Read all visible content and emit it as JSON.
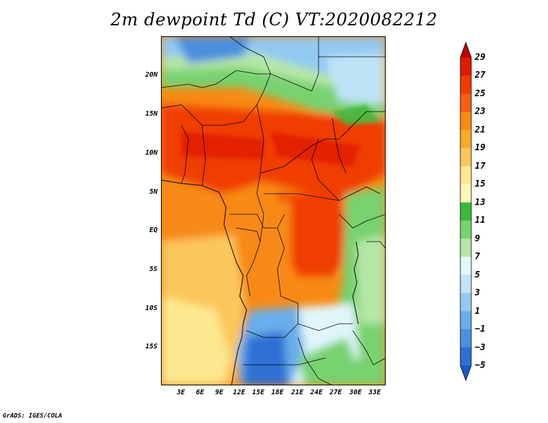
{
  "title": "2m dewpoint Td (C) VT:2020082212",
  "credit": "GrADS: IGES/COLA",
  "map": {
    "lat_labels": [
      "20N",
      "15N",
      "10N",
      "5N",
      "EQ",
      "5S",
      "10S",
      "15S"
    ],
    "lon_labels": [
      "3E",
      "6E",
      "9E",
      "12E",
      "15E",
      "18E",
      "21E",
      "24E",
      "27E",
      "30E",
      "33E"
    ]
  },
  "colorbar": {
    "levels": [
      "29",
      "27",
      "25",
      "23",
      "21",
      "19",
      "17",
      "15",
      "13",
      "11",
      "9",
      "7",
      "5",
      "3",
      "1",
      "−1",
      "−3",
      "−5"
    ],
    "colors": [
      "#c00000",
      "#e11a00",
      "#f03c00",
      "#f65e10",
      "#f78a12",
      "#faaa2a",
      "#fbc75c",
      "#fde88f",
      "#fdf7ba",
      "#3cb93c",
      "#78d270",
      "#b5e7a7",
      "#e1f6fb",
      "#bfe3f7",
      "#93c9f1",
      "#6aaeea",
      "#4b8fe0",
      "#2e6fd4",
      "#1c58c8"
    ]
  }
}
